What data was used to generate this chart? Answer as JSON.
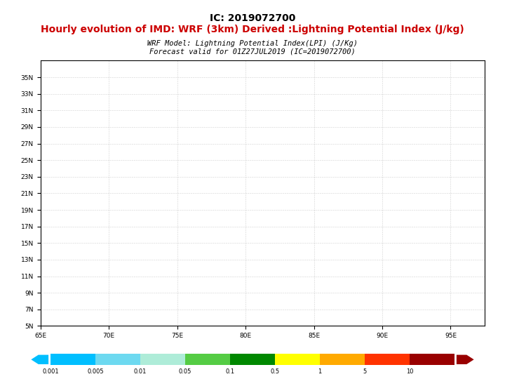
{
  "title_top": "IC: 2019072700",
  "title_sub": "Hourly evolution of IMD: WRF (3km) Derived :Lightning Potential Index (J/kg)",
  "model_line1": "WRF Model: Lightning Potential Index(LPI) (J/Kg)",
  "model_line2": "Forecast valid for 01Z27JUL2019 (IC=2019072700)",
  "colorbar_tick_labels": [
    "0.001",
    "0.005",
    "0.01",
    "0.05",
    "0.1",
    "0.5",
    "1",
    "5",
    "10"
  ],
  "colorbar_colors": [
    "#00BFFF",
    "#6DD9F0",
    "#AEECD8",
    "#55CC44",
    "#008800",
    "#FFFF00",
    "#FFAA00",
    "#FF3300",
    "#990000"
  ],
  "ylat_ticks": [
    5,
    7,
    9,
    11,
    13,
    15,
    17,
    19,
    21,
    23,
    25,
    27,
    29,
    31,
    33,
    35
  ],
  "xlon_ticks": [
    65,
    70,
    75,
    80,
    85,
    90,
    95
  ],
  "map_extent": [
    65.5,
    97.5,
    5.0,
    37.0
  ],
  "background_color": "#ffffff",
  "map_bg_color": "#ffffff",
  "grid_color": "#aaaaaa",
  "title_top_color": "#000000",
  "title_sub_color": "#cc0000",
  "model_text_color": "#000000",
  "border_color": "#000000",
  "border_lw": 0.4,
  "coast_lw": 0.6
}
